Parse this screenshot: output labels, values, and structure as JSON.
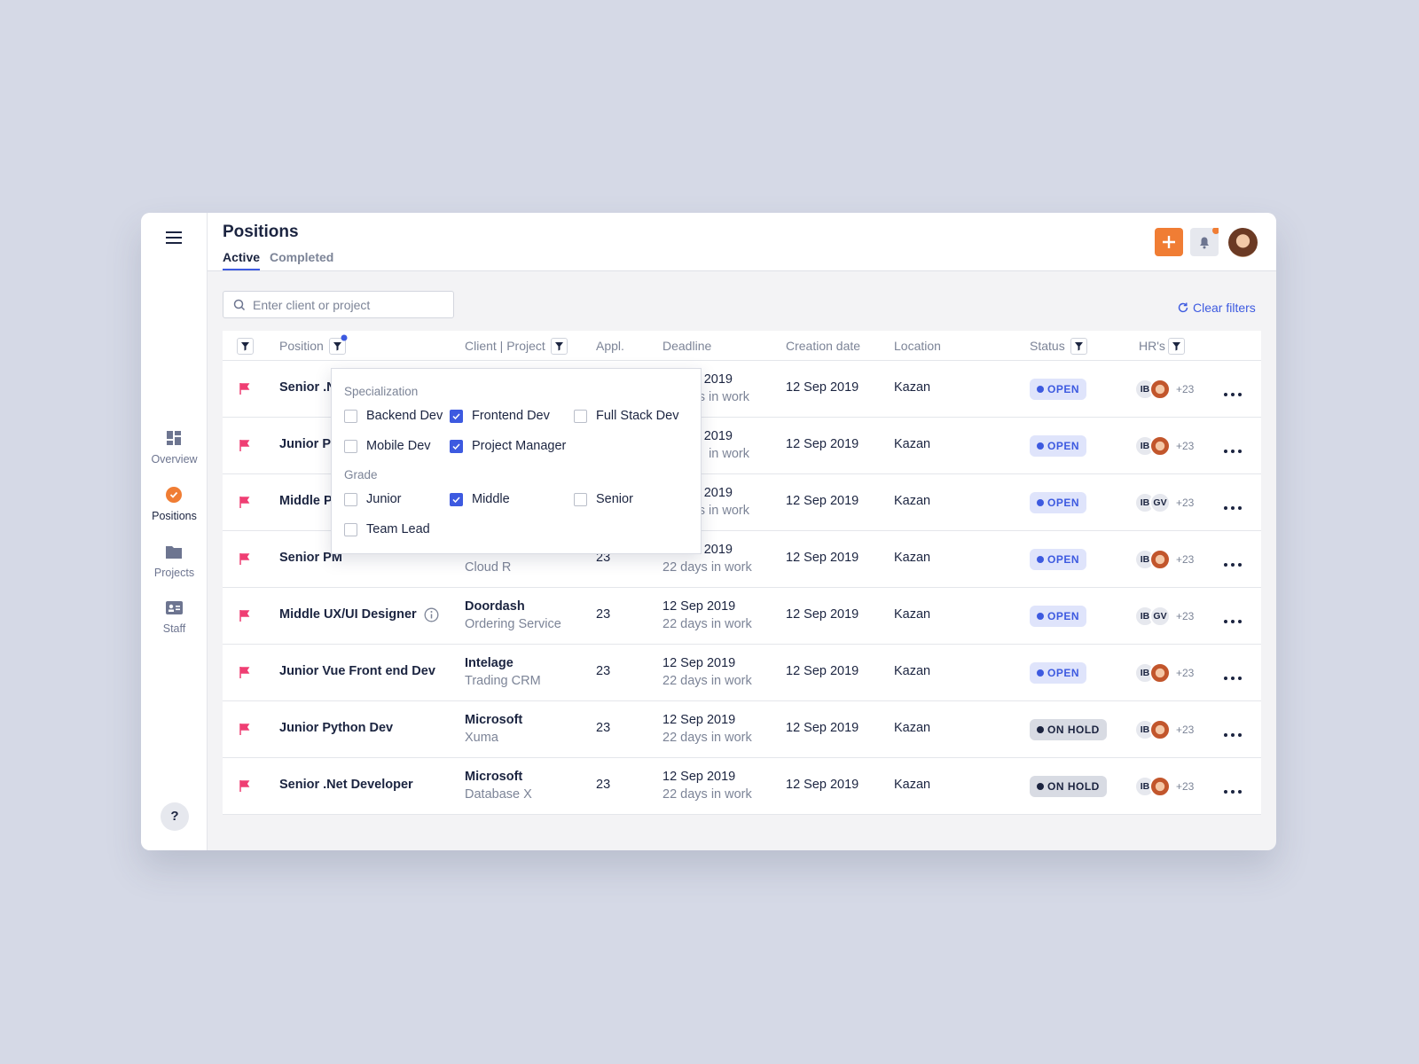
{
  "sidebar": {
    "nav": [
      "Overview",
      "Positions",
      "Projects",
      "Staff"
    ],
    "active": 1,
    "help": "?"
  },
  "header": {
    "title": "Positions",
    "tabs": [
      "Active",
      "Completed"
    ],
    "active_tab": 0
  },
  "toolbar": {
    "search_placeholder": "Enter client or project",
    "clear_filters": "Clear filters"
  },
  "table": {
    "columns": [
      "Position",
      "Client | Project",
      "Appl.",
      "Deadline",
      "Creation date",
      "Location",
      "Status",
      "HR's"
    ],
    "rows": [
      {
        "position": "Senior .N",
        "client": null,
        "project": null,
        "applications": null,
        "deadline": "2019",
        "days": "s in work",
        "created": "12 Sep 2019",
        "location": "Kazan",
        "status": "OPEN",
        "hrs": [
          "IB"
        ],
        "more": "+23"
      },
      {
        "position": "Junior Py",
        "client": null,
        "project": null,
        "applications": null,
        "deadline": "2019",
        "days": "in work",
        "created": "12 Sep 2019",
        "location": "Kazan",
        "status": "OPEN",
        "hrs": [
          "IB"
        ],
        "more": "+23"
      },
      {
        "position": "Middle Pr",
        "client": null,
        "project": null,
        "applications": null,
        "deadline": "2019",
        "days": "s in work",
        "created": "12 Sep 2019",
        "location": "Kazan",
        "status": "OPEN",
        "hrs": [
          "IB",
          "GV"
        ],
        "more": "+23"
      },
      {
        "position": "Senior PM",
        "client": null,
        "project": "Cloud R",
        "applications": 23,
        "deadline": "2019",
        "days": "22 days in work",
        "created": "12 Sep 2019",
        "location": "Kazan",
        "status": "OPEN",
        "hrs": [
          "IB"
        ],
        "more": "+23"
      },
      {
        "position": "Middle UX/UI Designer",
        "info_icon": true,
        "client": "Doordash",
        "project": "Ordering Service",
        "applications": 23,
        "deadline": "12 Sep 2019",
        "days": "22 days in work",
        "created": "12 Sep 2019",
        "location": "Kazan",
        "status": "OPEN",
        "hrs": [
          "IB",
          "GV"
        ],
        "more": "+23"
      },
      {
        "position": "Junior Vue Front end Dev",
        "client": "Intelage",
        "project": "Trading CRM",
        "applications": 23,
        "deadline": "12 Sep 2019",
        "days": "22 days in work",
        "created": "12 Sep 2019",
        "location": "Kazan",
        "status": "OPEN",
        "hrs": [
          "IB"
        ],
        "more": "+23"
      },
      {
        "position": "Junior Python Dev",
        "client": "Microsoft",
        "project": "Xuma",
        "applications": 23,
        "deadline": "12 Sep 2019",
        "days": "22 days in work",
        "created": "12 Sep 2019",
        "location": "Kazan",
        "status": "ON HOLD",
        "hrs": [
          "IB"
        ],
        "more": "+23"
      },
      {
        "position": "Senior .Net Developer",
        "client": "Microsoft",
        "project": "Database X",
        "applications": 23,
        "deadline": "12 Sep 2019",
        "days": "22 days in work",
        "created": "12 Sep 2019",
        "location": "Kazan",
        "status": "ON HOLD",
        "hrs": [
          "IB"
        ],
        "more": "+23"
      }
    ]
  },
  "filter_popup": {
    "groups": [
      {
        "title": "Specialization",
        "options": [
          {
            "label": "Backend Dev",
            "checked": false
          },
          {
            "label": "Frontend Dev",
            "checked": true
          },
          {
            "label": "Full Stack Dev",
            "checked": false
          },
          {
            "label": "Mobile Dev",
            "checked": false
          },
          {
            "label": "Project Manager",
            "checked": true
          }
        ]
      },
      {
        "title": "Grade",
        "options": [
          {
            "label": "Junior",
            "checked": false
          },
          {
            "label": "Middle",
            "checked": true
          },
          {
            "label": "Senior",
            "checked": false
          },
          {
            "label": "Team Lead",
            "checked": false
          }
        ]
      }
    ]
  }
}
